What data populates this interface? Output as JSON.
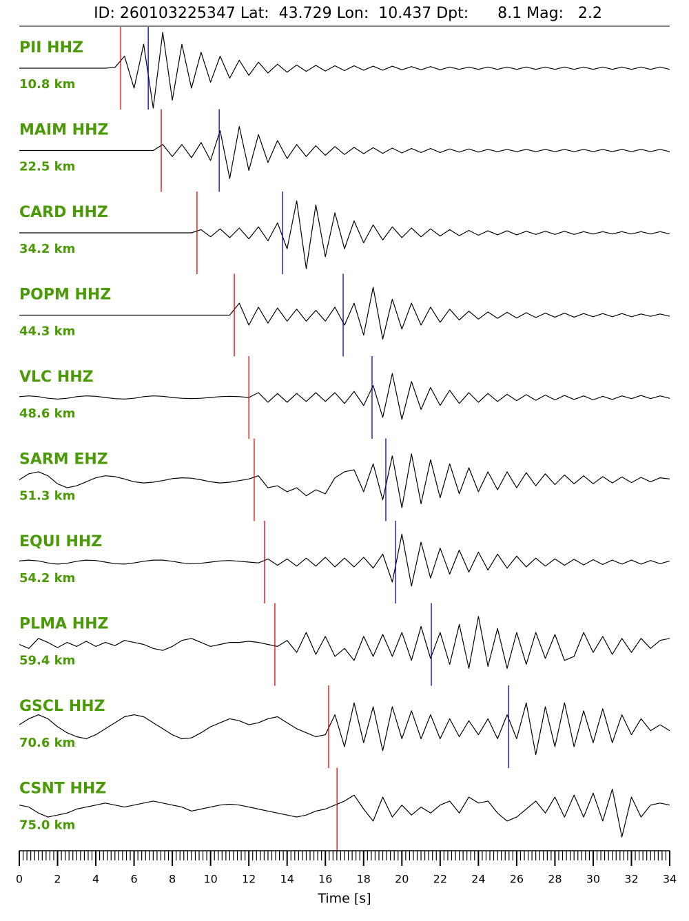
{
  "chart_data": {
    "type": "seismogram",
    "title": "ID: 260103225347 Lat:  43.729 Lon:  10.437 Dpt:      8.1 Mag:   2.2",
    "xlabel": "Time [s]",
    "xlim": [
      0,
      34
    ],
    "xticks": [
      0,
      2,
      4,
      6,
      8,
      10,
      12,
      14,
      16,
      18,
      20,
      22,
      24,
      26,
      28,
      30,
      32,
      34
    ],
    "xminorstep": 0.2,
    "trace_color": "#000000",
    "label_color": "#4a9a06",
    "p_color": "#e00000",
    "s_color": "#0000cc",
    "x": [
      0,
      0.5,
      1,
      1.5,
      2,
      2.5,
      3,
      3.5,
      4,
      4.5,
      5,
      5.5,
      6,
      6.5,
      7,
      7.5,
      8,
      8.5,
      9,
      9.5,
      10,
      10.5,
      11,
      11.5,
      12,
      12.5,
      13,
      13.5,
      14,
      14.5,
      15,
      15.5,
      16,
      16.5,
      17,
      17.5,
      18,
      18.5,
      19,
      19.5,
      20,
      20.5,
      21,
      21.5,
      22,
      22.5,
      23,
      23.5,
      24,
      24.5,
      25,
      25.5,
      26,
      26.5,
      27,
      27.5,
      28,
      28.5,
      29,
      29.5,
      30,
      30.5,
      31,
      31.5,
      32,
      32.5,
      33,
      33.5,
      34
    ],
    "series": [
      {
        "name": "PII HHZ",
        "distance": "10.8 km",
        "p_pick": 5.3,
        "s_pick": 6.74,
        "values": [
          0,
          0,
          0,
          0,
          0,
          0,
          0,
          0,
          0,
          0,
          0.02,
          0.3,
          -0.5,
          0.6,
          -1,
          0.9,
          -0.8,
          0.6,
          -0.5,
          0.4,
          -0.35,
          0.3,
          -0.25,
          0.2,
          -0.18,
          0.15,
          -0.12,
          0.1,
          -0.1,
          0.08,
          -0.08,
          0.07,
          -0.07,
          0.06,
          -0.06,
          0.06,
          -0.05,
          0.05,
          -0.05,
          0.05,
          -0.04,
          0.04,
          -0.04,
          0.04,
          -0.04,
          0.03,
          -0.03,
          0.03,
          -0.03,
          0.03,
          -0.03,
          0.03,
          -0.03,
          0.03,
          -0.03,
          0.03,
          -0.03,
          0.03,
          -0.03,
          0.03,
          -0.03,
          0.03,
          -0.03,
          0.03,
          -0.03,
          0.03,
          -0.03,
          0.03,
          -0.03
        ]
      },
      {
        "name": "MAIM HHZ",
        "distance": "22.5 km",
        "p_pick": 7.42,
        "s_pick": 10.45,
        "values": [
          0,
          0,
          0,
          0,
          0,
          0,
          0,
          0,
          0,
          0,
          0,
          0,
          0,
          0,
          0,
          0.15,
          -0.15,
          0.15,
          -0.18,
          0.2,
          -0.25,
          0.5,
          -0.7,
          0.6,
          -0.5,
          0.4,
          -0.3,
          0.25,
          -0.2,
          0.15,
          -0.15,
          0.12,
          -0.12,
          0.1,
          -0.1,
          0.08,
          -0.08,
          0.07,
          -0.07,
          0.06,
          -0.06,
          0.05,
          -0.05,
          0.05,
          -0.05,
          0.04,
          -0.04,
          0.04,
          -0.04,
          0.03,
          -0.03,
          0.03,
          -0.03,
          0.03,
          -0.03,
          0.03,
          -0.03,
          0.03,
          -0.03,
          0.03,
          -0.03,
          0.03,
          -0.03,
          0.03,
          -0.03,
          0.03,
          -0.03,
          0.03,
          -0.03
        ]
      },
      {
        "name": "CARD HHZ",
        "distance": "34.2 km",
        "p_pick": 9.29,
        "s_pick": 13.76,
        "values": [
          0,
          0,
          0,
          0,
          0,
          0,
          0,
          0,
          0,
          0,
          0,
          0,
          0,
          0,
          0,
          0,
          0,
          0,
          0,
          0.08,
          -0.1,
          0.1,
          -0.12,
          0.12,
          -0.15,
          0.15,
          -0.2,
          0.25,
          -0.4,
          0.8,
          -0.9,
          0.7,
          -0.6,
          0.5,
          -0.4,
          0.3,
          -0.25,
          0.2,
          -0.18,
          0.15,
          -0.12,
          0.12,
          -0.1,
          0.1,
          -0.08,
          0.08,
          -0.07,
          0.06,
          -0.06,
          0.05,
          -0.05,
          0.05,
          -0.05,
          0.04,
          -0.04,
          0.04,
          -0.04,
          0.04,
          -0.04,
          0.03,
          -0.03,
          0.03,
          -0.03,
          0.03,
          -0.03,
          0.03,
          -0.03,
          0.03,
          -0.03
        ]
      },
      {
        "name": "POPM HHZ",
        "distance": "44.3 km",
        "p_pick": 11.24,
        "s_pick": 16.93,
        "values": [
          0,
          0,
          0,
          0,
          0,
          0,
          0,
          0,
          0,
          0,
          0,
          0,
          0,
          0,
          0,
          0,
          0,
          0,
          0,
          0,
          0,
          0,
          0,
          0.3,
          -0.25,
          0.2,
          -0.2,
          0.18,
          -0.15,
          0.15,
          -0.15,
          0.12,
          -0.15,
          0.2,
          -0.25,
          0.3,
          -0.5,
          0.7,
          -0.6,
          0.4,
          -0.35,
          0.3,
          -0.25,
          0.2,
          -0.18,
          0.15,
          -0.12,
          0.1,
          -0.1,
          0.08,
          -0.08,
          0.07,
          -0.07,
          0.06,
          -0.06,
          0.05,
          -0.05,
          0.05,
          -0.05,
          0.04,
          -0.04,
          0.04,
          -0.04,
          0.04,
          -0.04,
          0.03,
          -0.03,
          0.03,
          -0.03
        ]
      },
      {
        "name": "VLC HHZ",
        "distance": "48.6 km",
        "p_pick": 12.0,
        "s_pick": 18.44,
        "values": [
          0.02,
          0.04,
          0.02,
          -0.02,
          -0.04,
          -0.02,
          0.02,
          0.04,
          0.03,
          0,
          -0.03,
          -0.04,
          -0.02,
          0.02,
          0.04,
          0.03,
          0,
          -0.02,
          -0.03,
          -0.02,
          0,
          0.02,
          0.03,
          0.02,
          0,
          0.12,
          -0.12,
          0.1,
          -0.12,
          0.1,
          -0.1,
          0.12,
          -0.1,
          0.12,
          -0.15,
          0.15,
          -0.2,
          0.3,
          -0.5,
          0.6,
          -0.55,
          0.4,
          -0.3,
          0.25,
          -0.2,
          0.18,
          -0.15,
          0.12,
          -0.12,
          0.1,
          -0.1,
          0.08,
          -0.08,
          0.07,
          -0.07,
          0.06,
          -0.06,
          0.05,
          -0.05,
          0.04,
          -0.06,
          0.03,
          -0.05,
          0.04,
          -0.03,
          0.05,
          -0.03,
          0.04,
          -0.02
        ]
      },
      {
        "name": "SARM EHZ",
        "distance": "51.3 km",
        "p_pick": 12.28,
        "s_pick": 19.16,
        "values": [
          0,
          0.15,
          0.2,
          0.1,
          -0.1,
          -0.2,
          -0.15,
          -0.05,
          0.05,
          0.1,
          0.08,
          0.02,
          -0.05,
          -0.08,
          -0.06,
          -0.02,
          0.03,
          0.05,
          0.04,
          0,
          -0.05,
          -0.08,
          -0.06,
          -0.02,
          0.02,
          0.1,
          -0.2,
          -0.15,
          -0.3,
          -0.2,
          -0.4,
          -0.25,
          -0.35,
          0.05,
          0.2,
          0.25,
          -0.3,
          0.4,
          -0.5,
          0.6,
          -0.7,
          0.65,
          -0.6,
          0.5,
          -0.45,
          0.4,
          -0.35,
          0.3,
          -0.3,
          0.2,
          -0.25,
          0.2,
          -0.2,
          0.18,
          -0.15,
          0.15,
          -0.12,
          0.12,
          -0.1,
          0.1,
          -0.1,
          0.08,
          -0.08,
          0.07,
          -0.07,
          0.06,
          -0.05,
          0.05,
          0.02
        ]
      },
      {
        "name": "EQUI HHZ",
        "distance": "54.2 km",
        "p_pick": 12.82,
        "s_pick": 19.67,
        "values": [
          0.03,
          0.05,
          0.03,
          -0.02,
          -0.05,
          -0.03,
          0.02,
          0.05,
          0.04,
          0,
          -0.04,
          -0.05,
          -0.02,
          0.02,
          0.05,
          0.05,
          0.02,
          -0.02,
          -0.04,
          -0.03,
          0,
          0.03,
          0.04,
          0.02,
          0,
          -0.02,
          0.08,
          -0.08,
          0.08,
          -0.1,
          0.1,
          -0.1,
          0.12,
          -0.12,
          0.1,
          -0.12,
          0.12,
          -0.15,
          0.2,
          -0.5,
          0.7,
          -0.6,
          0.5,
          -0.4,
          0.35,
          -0.3,
          0.3,
          -0.25,
          0.25,
          -0.2,
          0.2,
          -0.15,
          0.15,
          -0.12,
          0.1,
          -0.1,
          0.08,
          -0.08,
          0.07,
          -0.07,
          0.06,
          -0.06,
          0.05,
          -0.05,
          0.05,
          -0.05,
          0.04,
          -0.04,
          0.03
        ]
      },
      {
        "name": "PLMA HHZ",
        "distance": "59.4 km",
        "p_pick": 13.36,
        "s_pick": 21.54,
        "values": [
          0,
          -0.1,
          0.15,
          0.05,
          -0.08,
          0.05,
          -0.05,
          0.08,
          -0.05,
          0.05,
          -0.03,
          0.1,
          0.05,
          0,
          -0.1,
          -0.15,
          -0.05,
          0.1,
          0.15,
          0.05,
          -0.05,
          0,
          0.05,
          0.05,
          0.08,
          0.05,
          0,
          -0.05,
          0.1,
          -0.2,
          0.3,
          -0.25,
          0.2,
          -0.3,
          -0.1,
          -0.4,
          0.2,
          -0.3,
          0.25,
          -0.3,
          0.3,
          -0.4,
          0.45,
          -0.35,
          0.3,
          -0.5,
          0.5,
          -0.6,
          0.7,
          -0.55,
          0.4,
          -0.6,
          0.3,
          -0.5,
          0.3,
          -0.35,
          0.25,
          -0.4,
          -0.3,
          0.3,
          -0.2,
          0.2,
          -0.25,
          0.15,
          -0.2,
          0.15,
          -0.1,
          0.1,
          0.15
        ]
      },
      {
        "name": "GSCL HHZ",
        "distance": "70.6 km",
        "p_pick": 16.17,
        "s_pick": 25.58,
        "values": [
          0.05,
          0.2,
          0.3,
          0.2,
          0,
          -0.15,
          -0.25,
          -0.3,
          -0.2,
          -0.05,
          0.1,
          0.25,
          0.3,
          0.25,
          0.1,
          -0.05,
          -0.2,
          -0.3,
          -0.28,
          -0.15,
          0,
          0.1,
          0.2,
          0.15,
          0.05,
          0.1,
          0.2,
          0.25,
          0.1,
          -0.05,
          -0.15,
          -0.25,
          -0.2,
          0.3,
          -0.5,
          0.6,
          -0.4,
          0.5,
          -0.6,
          0.5,
          -0.3,
          0.4,
          -0.3,
          0.3,
          -0.3,
          0.2,
          -0.25,
          0.15,
          -0.2,
          0.2,
          -0.3,
          0.3,
          -0.3,
          0.6,
          -0.7,
          0.5,
          -0.5,
          0.6,
          -0.5,
          0.4,
          -0.4,
          0.45,
          -0.4,
          0.3,
          -0.2,
          0.2,
          -0.1,
          0.05,
          -0.1
        ]
      },
      {
        "name": "CSNT HHZ",
        "distance": "75.0 km",
        "p_pick": 16.61,
        "values": [
          0.1,
          0.05,
          -0.1,
          -0.2,
          -0.15,
          -0.1,
          0,
          0.05,
          0.1,
          0.15,
          0.1,
          0.05,
          0.1,
          0.15,
          0.2,
          0.15,
          0.1,
          0.05,
          -0.05,
          0,
          0.05,
          0.1,
          0.12,
          0.1,
          0.05,
          0,
          -0.05,
          -0.1,
          -0.15,
          -0.2,
          -0.15,
          -0.05,
          0,
          0.1,
          0.2,
          0.35,
          0,
          -0.3,
          0.3,
          -0.2,
          0.1,
          -0.15,
          0.05,
          -0.1,
          0.1,
          0.2,
          -0.1,
          0.3,
          0.15,
          0.2,
          -0.1,
          -0.3,
          -0.2,
          0,
          0.2,
          -0.1,
          0.3,
          -0.2,
          0.35,
          -0.2,
          0.4,
          -0.3,
          0.5,
          -0.7,
          0.3,
          -0.2,
          0.1,
          0.15,
          0.1
        ]
      }
    ]
  }
}
